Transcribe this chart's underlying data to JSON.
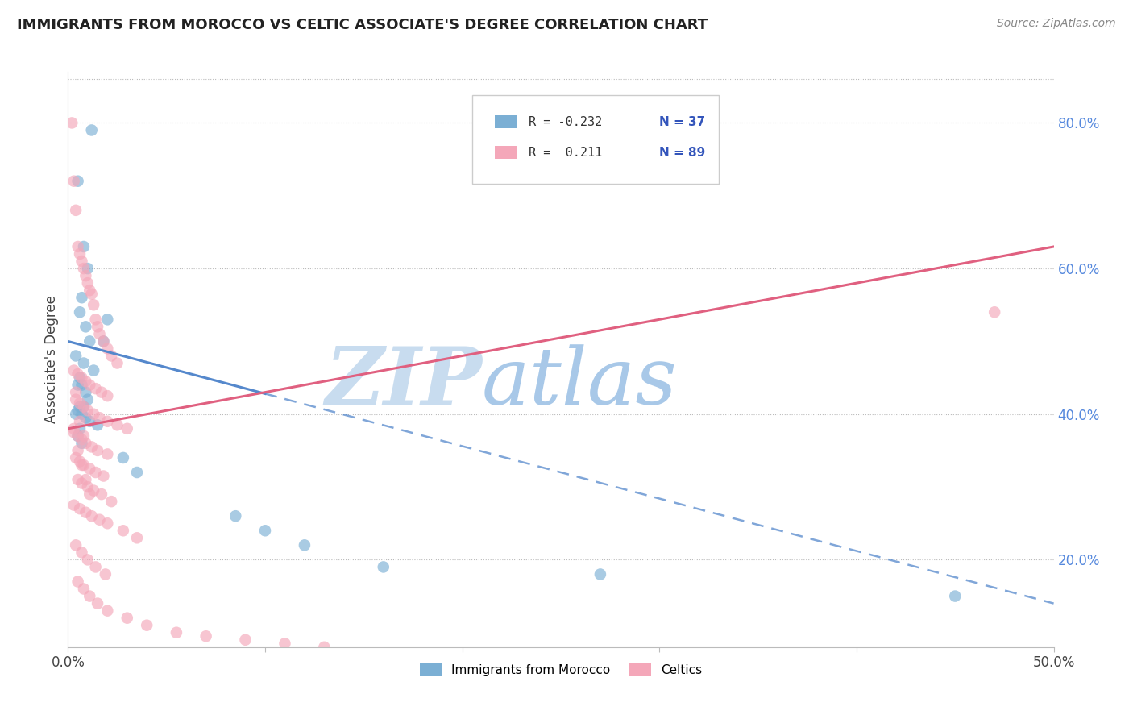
{
  "title": "IMMIGRANTS FROM MOROCCO VS CELTIC ASSOCIATE'S DEGREE CORRELATION CHART",
  "source": "Source: ZipAtlas.com",
  "ylabel": "Associate's Degree",
  "x_min": 0.0,
  "x_max": 50.0,
  "y_min": 8.0,
  "y_max": 87.0,
  "x_ticks": [
    0.0,
    10.0,
    20.0,
    30.0,
    40.0,
    50.0
  ],
  "y_ticks": [
    20.0,
    40.0,
    60.0,
    80.0
  ],
  "color_blue": "#7BAFD4",
  "color_pink": "#F4A7B9",
  "color_blue_line": "#5588CC",
  "color_pink_line": "#E06080",
  "watermark_zip": "ZIP",
  "watermark_atlas": "atlas",
  "legend_label1": "Immigrants from Morocco",
  "legend_label2": "Celtics",
  "blue_r": "-0.232",
  "blue_n": "37",
  "pink_r": "0.211",
  "pink_n": "89",
  "blue_points_x": [
    1.2,
    0.5,
    0.8,
    1.0,
    0.7,
    0.6,
    0.9,
    1.1,
    0.4,
    0.8,
    1.3,
    0.6,
    0.5,
    0.7,
    0.9,
    1.0,
    0.6,
    0.8,
    0.5,
    0.4,
    0.7,
    0.9,
    1.1,
    1.5,
    0.6,
    2.0,
    1.8,
    0.5,
    0.7,
    2.8,
    3.5,
    8.5,
    10.0,
    12.0,
    16.0,
    27.0,
    45.0
  ],
  "blue_points_y": [
    79.0,
    72.0,
    63.0,
    60.0,
    56.0,
    54.0,
    52.0,
    50.0,
    48.0,
    47.0,
    46.0,
    45.0,
    44.0,
    44.0,
    43.0,
    42.0,
    41.0,
    41.0,
    40.5,
    40.0,
    40.0,
    39.5,
    39.0,
    38.5,
    38.0,
    53.0,
    50.0,
    37.0,
    36.0,
    34.0,
    32.0,
    26.0,
    24.0,
    22.0,
    19.0,
    18.0,
    15.0
  ],
  "pink_points_x": [
    0.2,
    0.3,
    0.4,
    0.5,
    0.6,
    0.7,
    0.8,
    0.9,
    1.0,
    1.1,
    1.2,
    1.3,
    1.4,
    1.5,
    1.6,
    1.8,
    2.0,
    2.2,
    2.5,
    0.3,
    0.5,
    0.7,
    0.9,
    1.1,
    1.4,
    1.7,
    2.0,
    0.4,
    0.6,
    0.8,
    1.0,
    1.3,
    1.6,
    2.0,
    2.5,
    3.0,
    0.3,
    0.5,
    0.7,
    0.9,
    1.2,
    1.5,
    2.0,
    0.4,
    0.6,
    0.8,
    1.1,
    1.4,
    1.8,
    0.5,
    0.7,
    1.0,
    1.3,
    1.7,
    2.2,
    0.3,
    0.6,
    0.9,
    1.2,
    1.6,
    2.0,
    2.8,
    3.5,
    0.4,
    0.7,
    1.0,
    1.4,
    1.9,
    0.5,
    0.8,
    1.1,
    1.5,
    2.0,
    3.0,
    4.0,
    5.5,
    7.0,
    9.0,
    11.0,
    13.0,
    0.4,
    0.6,
    0.8,
    0.5,
    0.7,
    0.9,
    1.1,
    47.0,
    0.3
  ],
  "pink_points_y": [
    80.0,
    72.0,
    68.0,
    63.0,
    62.0,
    61.0,
    60.0,
    59.0,
    58.0,
    57.0,
    56.5,
    55.0,
    53.0,
    52.0,
    51.0,
    50.0,
    49.0,
    48.0,
    47.0,
    46.0,
    45.5,
    45.0,
    44.5,
    44.0,
    43.5,
    43.0,
    42.5,
    42.0,
    41.5,
    41.0,
    40.5,
    40.0,
    39.5,
    39.0,
    38.5,
    38.0,
    37.5,
    37.0,
    36.5,
    36.0,
    35.5,
    35.0,
    34.5,
    34.0,
    33.5,
    33.0,
    32.5,
    32.0,
    31.5,
    31.0,
    30.5,
    30.0,
    29.5,
    29.0,
    28.0,
    27.5,
    27.0,
    26.5,
    26.0,
    25.5,
    25.0,
    24.0,
    23.0,
    22.0,
    21.0,
    20.0,
    19.0,
    18.0,
    17.0,
    16.0,
    15.0,
    14.0,
    13.0,
    12.0,
    11.0,
    10.0,
    9.5,
    9.0,
    8.5,
    8.0,
    43.0,
    39.0,
    37.0,
    35.0,
    33.0,
    31.0,
    29.0,
    54.0,
    38.0
  ]
}
